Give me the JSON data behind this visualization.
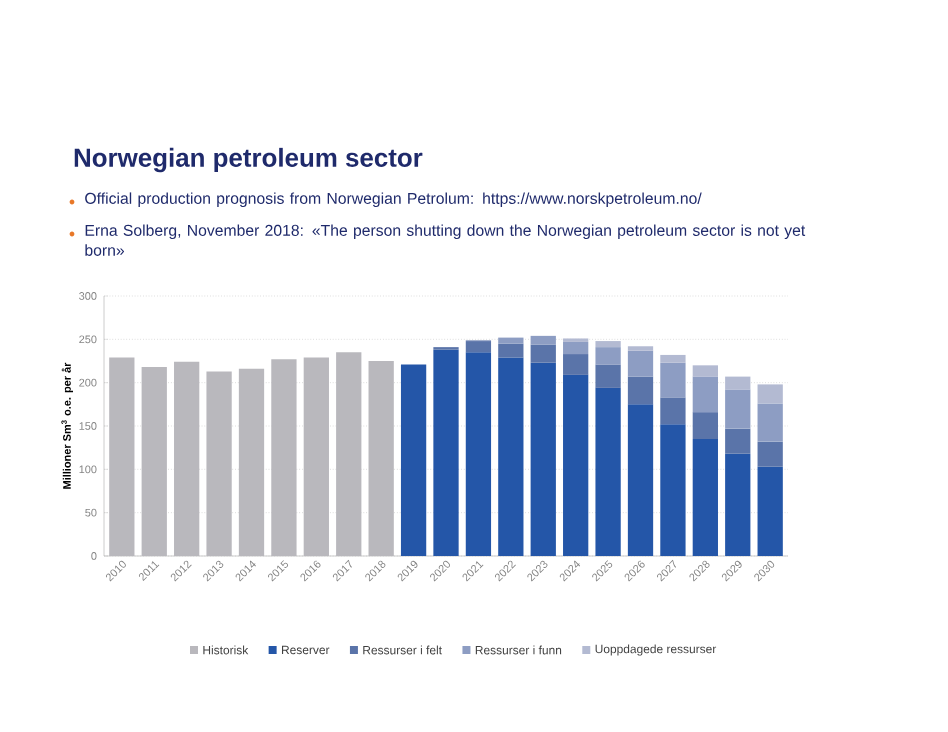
{
  "chart_data": {
    "type": "bar",
    "title": "Norwegian petroleum sector",
    "annotations": [
      "Official production prognosis from Norwegian Petrolum: https://www.norskpetroleum.no/",
      "Erna Solberg, November 2018: «The person shutting down the Norwegian petroleum sector is not yet born»"
    ],
    "ylabel": "Millioner Sm$^{3}$ o.e. per år",
    "categories": [
      "2010",
      "2011",
      "2012",
      "2013",
      "2014",
      "2015",
      "2016",
      "2017",
      "2018",
      "2019",
      "2020",
      "2021",
      "2022",
      "2023",
      "2024",
      "2025",
      "2026",
      "2027",
      "2028",
      "2029",
      "2030"
    ],
    "stacked": true,
    "series": [
      {
        "name": "Historisk",
        "color": "#b9b8bd",
        "values": [
          229,
          218,
          224,
          213,
          216,
          227,
          229,
          235,
          225,
          null,
          null,
          null,
          null,
          null,
          null,
          null,
          null,
          null,
          null,
          null,
          null
        ]
      },
      {
        "name": "Reserver",
        "color": "#2456a8",
        "values": [
          null,
          null,
          null,
          null,
          null,
          null,
          null,
          null,
          null,
          221,
          238,
          235,
          229,
          223,
          209,
          194,
          175,
          152,
          135,
          118,
          103
        ]
      },
      {
        "name": "Ressurser i felt",
        "color": "#5a74a9",
        "values": [
          null,
          null,
          null,
          null,
          null,
          null,
          null,
          null,
          null,
          null,
          3,
          13,
          16,
          21,
          24,
          27,
          32,
          31,
          31,
          29,
          29
        ]
      },
      {
        "name": "Ressurser i funn",
        "color": "#8d9dc3",
        "values": [
          null,
          null,
          null,
          null,
          null,
          null,
          null,
          null,
          null,
          null,
          null,
          1,
          7,
          10,
          14,
          20,
          30,
          40,
          41,
          45,
          44
        ]
      },
      {
        "name": "Uoppdagede ressurser",
        "color": "#b3bad2",
        "values": [
          null,
          null,
          null,
          null,
          null,
          null,
          null,
          null,
          null,
          null,
          null,
          null,
          null,
          null,
          4,
          7,
          5,
          9,
          13,
          15,
          22
        ]
      }
    ],
    "ylim": [
      0,
      300
    ],
    "yticks": [
      0,
      50,
      100,
      150,
      200,
      250,
      300
    ],
    "grid": "y",
    "legend": "bottom"
  }
}
